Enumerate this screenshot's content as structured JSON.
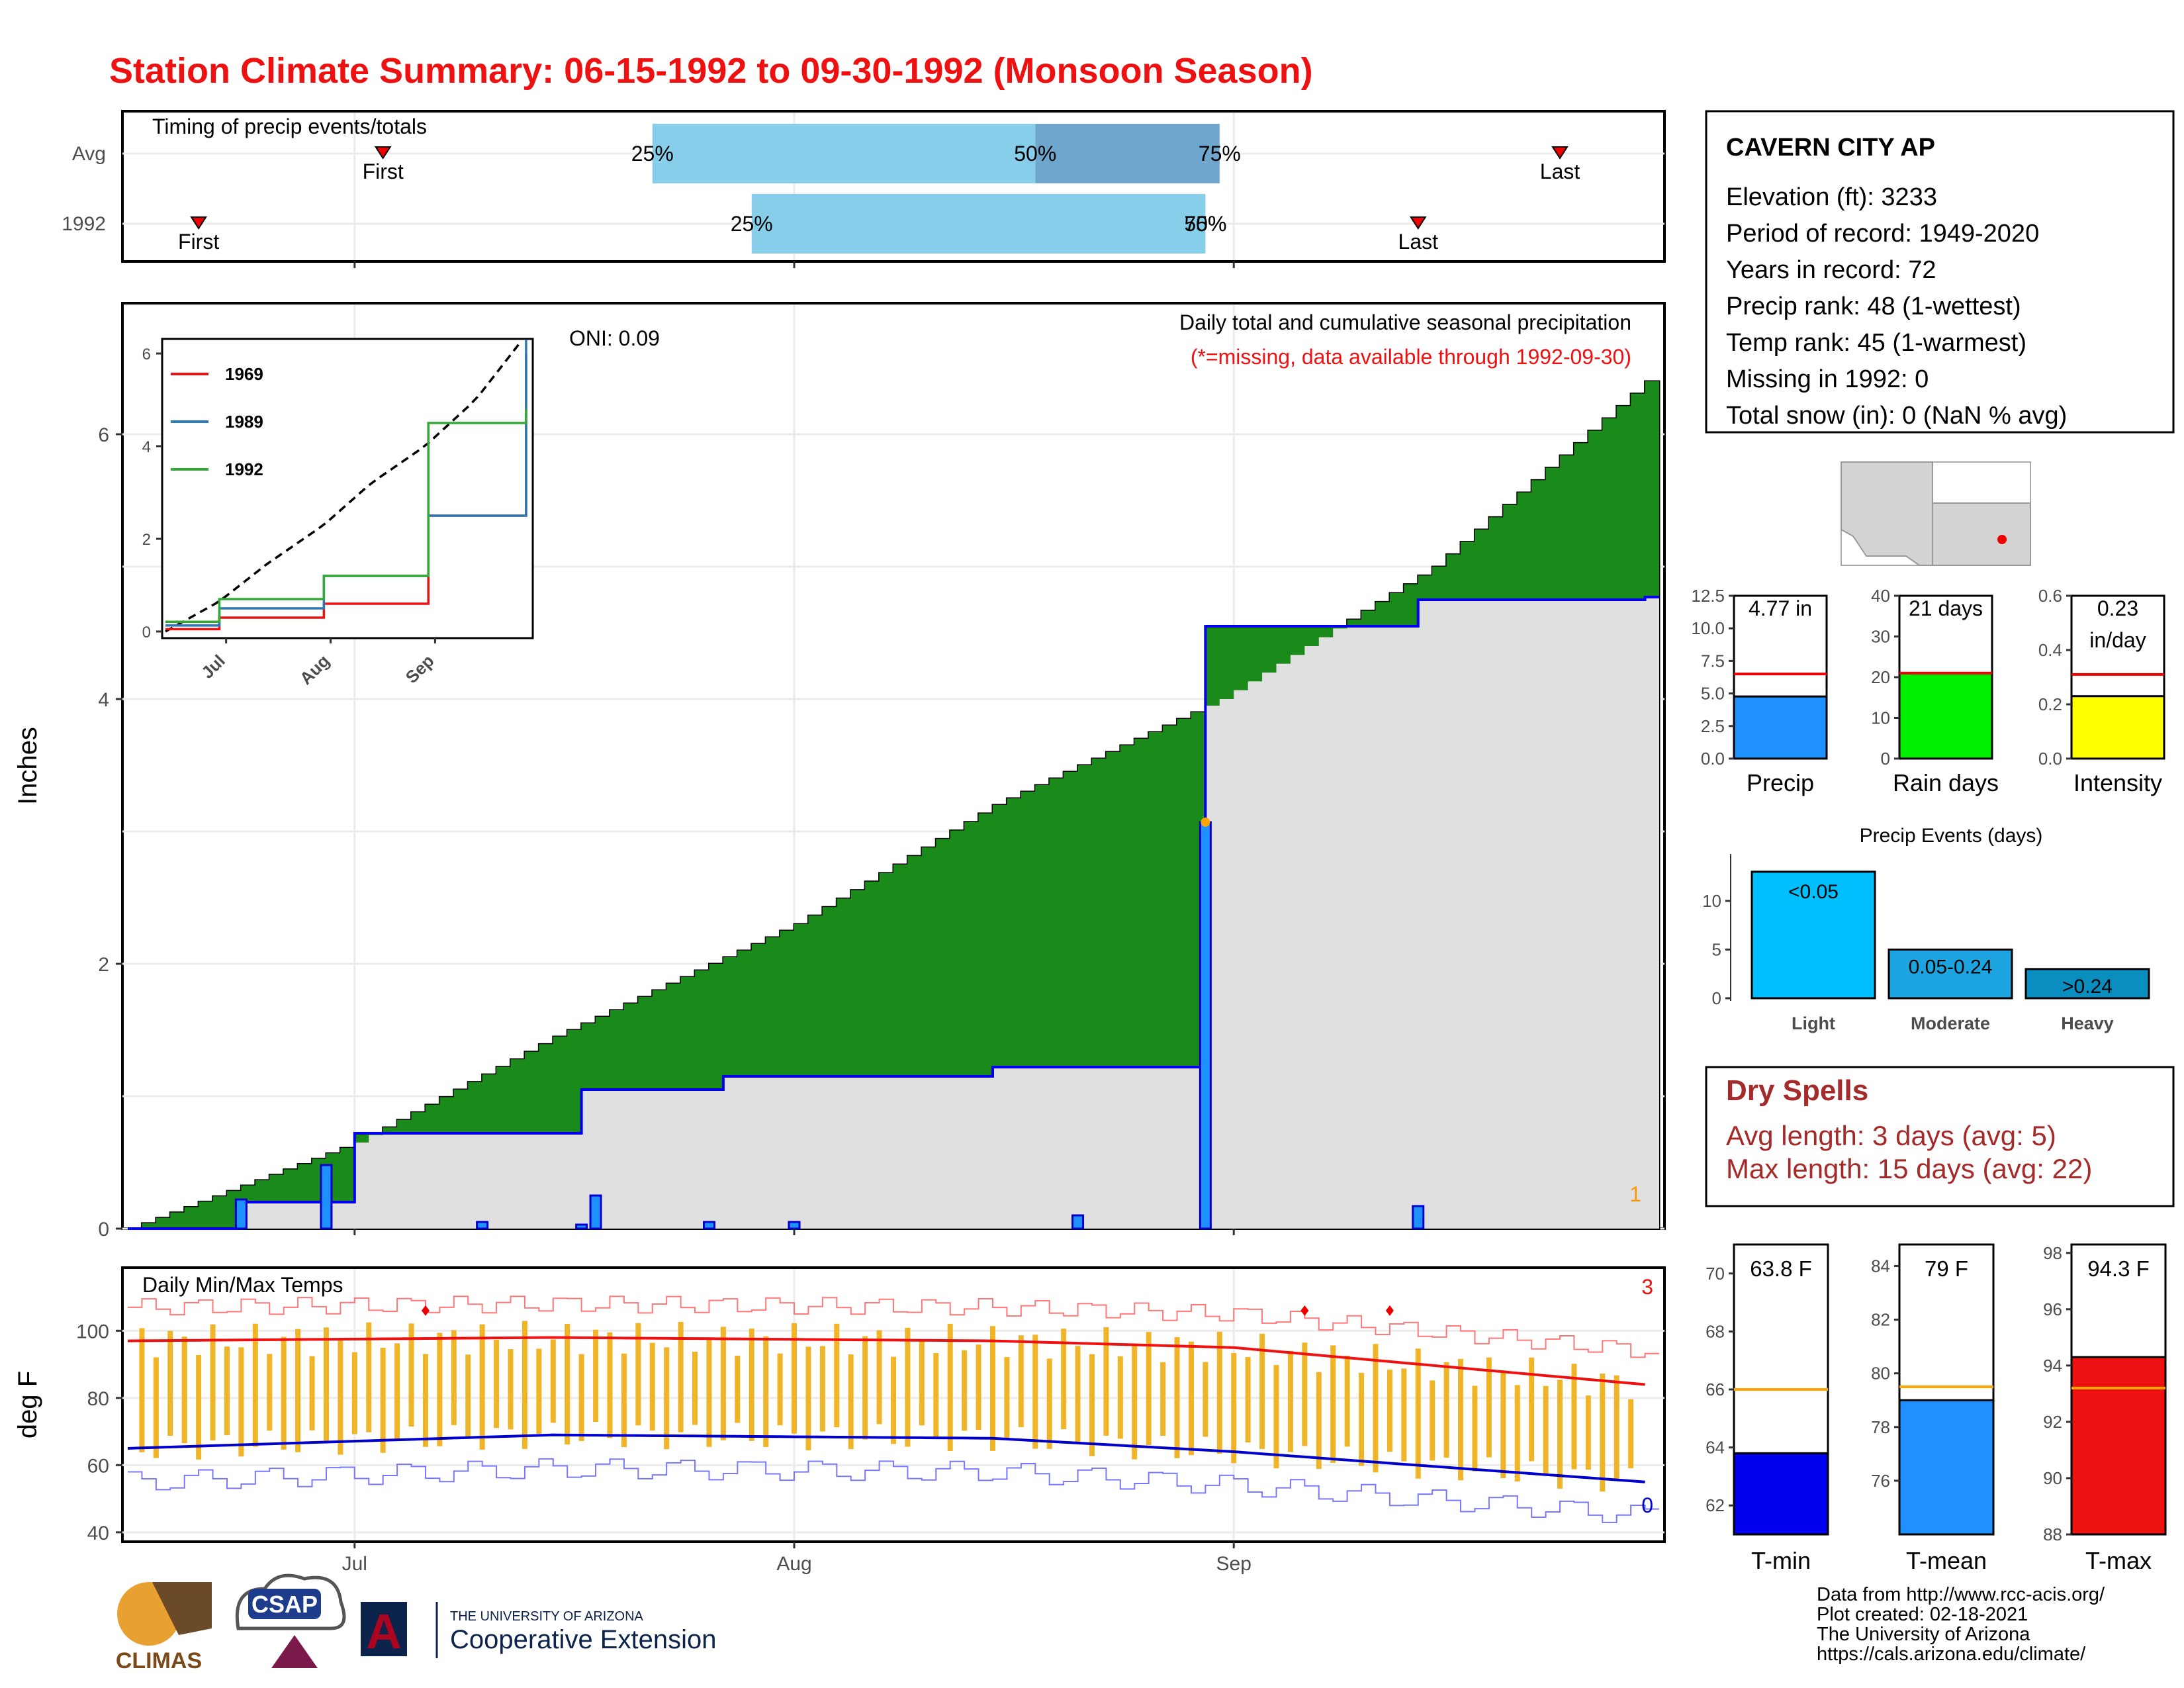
{
  "title": "Station Climate Summary: 06-15-1992 to 09-30-1992 (Monsoon Season)",
  "colors": {
    "title": "#ee1111",
    "cumulative_1992": "#0000ee",
    "avg_area": "#8b5a00",
    "above_avg_area": "#228b22",
    "daily_bar": "#1e90ff",
    "temp_bar": "#f0b429",
    "max_line": "#ee1111",
    "min_line": "#0000cc",
    "light": "#00bfff",
    "moderate": "#1ca4e0",
    "heavy": "#0a8ec0"
  },
  "timing": {
    "label": "Timing of precip events/totals",
    "rows": [
      "Avg",
      "1992"
    ],
    "first_label": "First",
    "last_label": "Last",
    "avg": {
      "first": "2021-07-03",
      "q25": "2021-07-22",
      "q50": "2021-08-18",
      "q75": "2021-08-31",
      "last": "2021-09-24"
    },
    "y1992": {
      "first": "2021-06-20",
      "q25": "2021-07-29",
      "q50": "2021-08-30",
      "q75": "2021-08-30",
      "last": "2021-09-14"
    },
    "q25_label": "25%",
    "q50_label": "50%",
    "q75_label": "75%"
  },
  "station": {
    "name": "CAVERN CITY AP",
    "lines": [
      "Elevation (ft): 3233",
      "Period of record: 1949-2020",
      "Years in record: 72",
      "Precip rank: 48 (1-wettest)",
      "Temp rank: 45 (1-warmest)",
      "Missing in 1992: 0",
      "Total snow (in): 0 (NaN % avg)"
    ]
  },
  "main": {
    "ylabel": "Inches",
    "title": "Daily total and cumulative seasonal precipitation",
    "subtitle": "(*=missing, data available through 1992-09-30)",
    "oni": "ONI: 0.09",
    "corner_count": "1",
    "x_ticks": [
      "Jul",
      "Aug",
      "Sep"
    ],
    "y_ticks": [
      "0",
      "2",
      "4",
      "6"
    ]
  },
  "temps": {
    "title": "Daily Min/Max Temps",
    "ylabel": "deg F",
    "count_max": "3",
    "count_min": "0",
    "y_ticks": [
      "40",
      "60",
      "80",
      "100"
    ]
  },
  "x_axis_labels": [
    "Jul",
    "Aug",
    "Sep"
  ],
  "inset": {
    "series_names": [
      "1969",
      "1989",
      "1992"
    ],
    "colors": [
      "#ee1111",
      "#2a7ab8",
      "#33aa33"
    ],
    "y_ticks": [
      "0",
      "2",
      "4",
      "6"
    ],
    "x_ticks": [
      "Jul",
      "Aug",
      "Sep"
    ]
  },
  "mini_bars": [
    {
      "label": "Precip",
      "value_text": "4.77 in",
      "value": 4.77,
      "avg": 6.5,
      "max": 12.5,
      "color": "#1e90ff",
      "ticks": [
        "0.0",
        "2.5",
        "5.0",
        "7.5",
        "10.0",
        "12.5"
      ]
    },
    {
      "label": "Rain days",
      "value_text": "21 days",
      "value": 21,
      "avg": 21,
      "max": 40,
      "color": "#00ee00",
      "ticks": [
        "0",
        "10",
        "20",
        "30",
        "40"
      ]
    },
    {
      "label": "Intensity",
      "value_text": "0.23",
      "value_text2": "in/day",
      "value": 0.23,
      "avg": 0.31,
      "max": 0.6,
      "color": "#ffff00",
      "ticks": [
        "0.0",
        "0.2",
        "0.4",
        "0.6"
      ]
    }
  ],
  "events": {
    "title": "Precip Events (days)",
    "categories": [
      "Light",
      "Moderate",
      "Heavy"
    ],
    "labels": [
      "<0.05",
      "0.05-0.24",
      ">0.24"
    ],
    "values": [
      13,
      5,
      3
    ],
    "y_ticks": [
      "0",
      "5",
      "10"
    ]
  },
  "dry_spells": {
    "title": "Dry Spells",
    "avg_line": "Avg length: 3 days (avg: 5)",
    "max_line": "Max length: 15 days (avg: 22)"
  },
  "temp_bars": [
    {
      "label": "T-min",
      "value_text": "63.8 F",
      "value": 63.8,
      "avg": 66,
      "min": 61,
      "max": 71,
      "color": "#0000ee",
      "ticks": [
        "62",
        "64",
        "66",
        "68",
        "70"
      ]
    },
    {
      "label": "T-mean",
      "value_text": "79 F",
      "value": 79,
      "avg": 79.5,
      "min": 74,
      "max": 84.8,
      "color": "#1e90ff",
      "ticks": [
        "76",
        "78",
        "80",
        "82",
        "84"
      ]
    },
    {
      "label": "T-max",
      "value_text": "94.3 F",
      "value": 94.3,
      "avg": 93.2,
      "min": 88,
      "max": 98.3,
      "color": "#ee1111",
      "ticks": [
        "88",
        "90",
        "92",
        "94",
        "96",
        "98"
      ]
    }
  ],
  "footer": {
    "lines": [
      "Data from http://www.rcc-acis.org/",
      "Plot created: 02-18-2021",
      "The University of Arizona",
      "https://cals.arizona.edu/climate/"
    ],
    "logo_climas": "CLIMAS",
    "logo_csap": "CSAP",
    "logo_ua_small": "THE UNIVERSITY OF ARIZONA",
    "logo_ua_big": "Cooperative Extension",
    "logo_ua_letter": "A"
  },
  "chart_data": [
    {
      "type": "area",
      "title": "Daily total and cumulative seasonal precipitation",
      "ylabel": "Inches",
      "x_range": [
        "1992-06-15",
        "1992-09-30"
      ],
      "ylim": [
        0,
        7
      ],
      "series": [
        {
          "name": "cumulative_avg",
          "x": [
            "06-15",
            "07-01",
            "07-15",
            "08-01",
            "08-15",
            "08-31",
            "09-15",
            "09-30"
          ],
          "values": [
            0,
            0.65,
            1.45,
            2.3,
            3.2,
            4.0,
            5.0,
            6.4
          ]
        },
        {
          "name": "cumulative_1992",
          "x": [
            "06-15",
            "06-23",
            "07-01",
            "07-17",
            "07-27",
            "08-15",
            "08-30",
            "09-14",
            "09-30"
          ],
          "values": [
            0,
            0.2,
            0.72,
            1.05,
            1.15,
            1.22,
            4.55,
            4.75,
            4.77
          ]
        }
      ],
      "daily_bars": {
        "x": [
          "06-23",
          "06-29",
          "07-10",
          "07-17",
          "07-18",
          "07-26",
          "08-01",
          "08-21",
          "08-30",
          "09-14"
        ],
        "values": [
          0.22,
          0.48,
          0.05,
          0.03,
          0.25,
          0.05,
          0.05,
          0.1,
          3.07,
          0.17
        ]
      }
    },
    {
      "type": "bar",
      "title": "Daily Min/Max Temps",
      "ylabel": "deg F",
      "ylim": [
        38,
        118
      ],
      "series": [
        {
          "name": "max_avg",
          "x": [
            "06-15",
            "07-15",
            "08-15",
            "09-01",
            "09-30"
          ],
          "values": [
            97,
            98,
            97,
            95,
            84
          ]
        },
        {
          "name": "min_avg",
          "x": [
            "06-15",
            "07-15",
            "08-15",
            "09-01",
            "09-30"
          ],
          "values": [
            65,
            69,
            68,
            64,
            55
          ]
        }
      ]
    },
    {
      "type": "line",
      "series": [
        {
          "name": "1969",
          "x": [
            "Jul",
            "Aug",
            "Sep",
            "end"
          ],
          "values": [
            0.3,
            0.6,
            2.5,
            6.0
          ]
        },
        {
          "name": "1989",
          "x": [
            "Jul",
            "Aug",
            "Sep",
            "end"
          ],
          "values": [
            0.5,
            1.2,
            2.5,
            6.3
          ]
        },
        {
          "name": "1992",
          "x": [
            "Jul",
            "Aug",
            "Sep",
            "end"
          ],
          "values": [
            0.7,
            1.2,
            4.5,
            4.8
          ]
        }
      ],
      "ylim": [
        0,
        6.5
      ]
    },
    {
      "type": "bar",
      "title": "Precip Events (days)",
      "categories": [
        "Light",
        "Moderate",
        "Heavy"
      ],
      "values": [
        13,
        5,
        3
      ]
    }
  ]
}
